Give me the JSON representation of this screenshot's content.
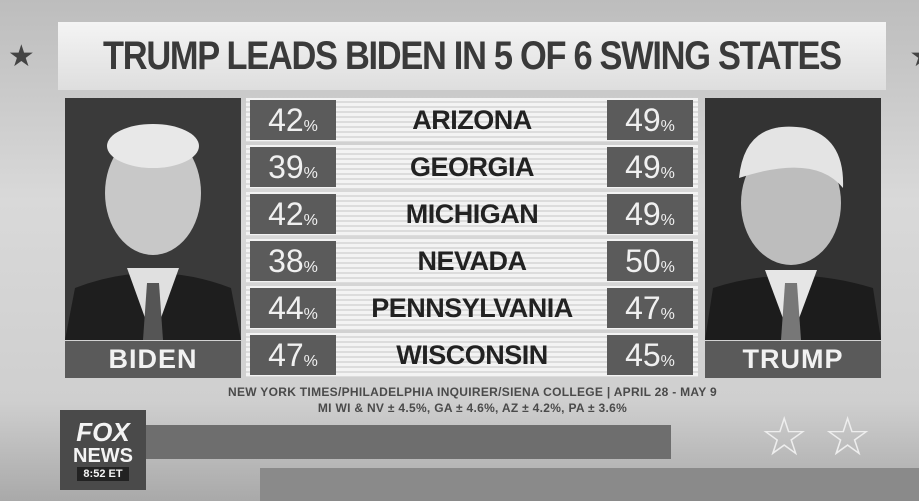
{
  "title": "TRUMP LEADS BIDEN IN 5 OF 6 SWING STATES",
  "left_candidate": "BIDEN",
  "right_candidate": "TRUMP",
  "rows": [
    {
      "state": "ARIZONA",
      "biden": {
        "number": "42",
        "sign": "%"
      },
      "trump": {
        "number": "49",
        "sign": "%"
      }
    },
    {
      "state": "GEORGIA",
      "biden": {
        "number": "39",
        "sign": "%"
      },
      "trump": {
        "number": "49",
        "sign": "%"
      }
    },
    {
      "state": "MICHIGAN",
      "biden": {
        "number": "42",
        "sign": "%"
      },
      "trump": {
        "number": "49",
        "sign": "%"
      }
    },
    {
      "state": "NEVADA",
      "biden": {
        "number": "38",
        "sign": "%"
      },
      "trump": {
        "number": "50",
        "sign": "%"
      }
    },
    {
      "state": "PENNSYLVANIA",
      "biden": {
        "number": "44",
        "sign": "%"
      },
      "trump": {
        "number": "47",
        "sign": "%"
      }
    },
    {
      "state": "WISCONSIN",
      "biden": {
        "number": "47",
        "sign": "%"
      },
      "trump": {
        "number": "45",
        "sign": "%"
      }
    }
  ],
  "source": [
    "NEW YORK TIMES/PHILADELPHIA INQUIRER/SIENA COLLEGE | APRIL 28 - MAY 9",
    "MI WI & NV ± 4.5%, GA ± 4.6%, AZ ± 4.2%, PA ± 3.6%"
  ],
  "logo": {
    "line1": "FOX",
    "line2": "NEWS",
    "time": "8:52 ET"
  }
}
